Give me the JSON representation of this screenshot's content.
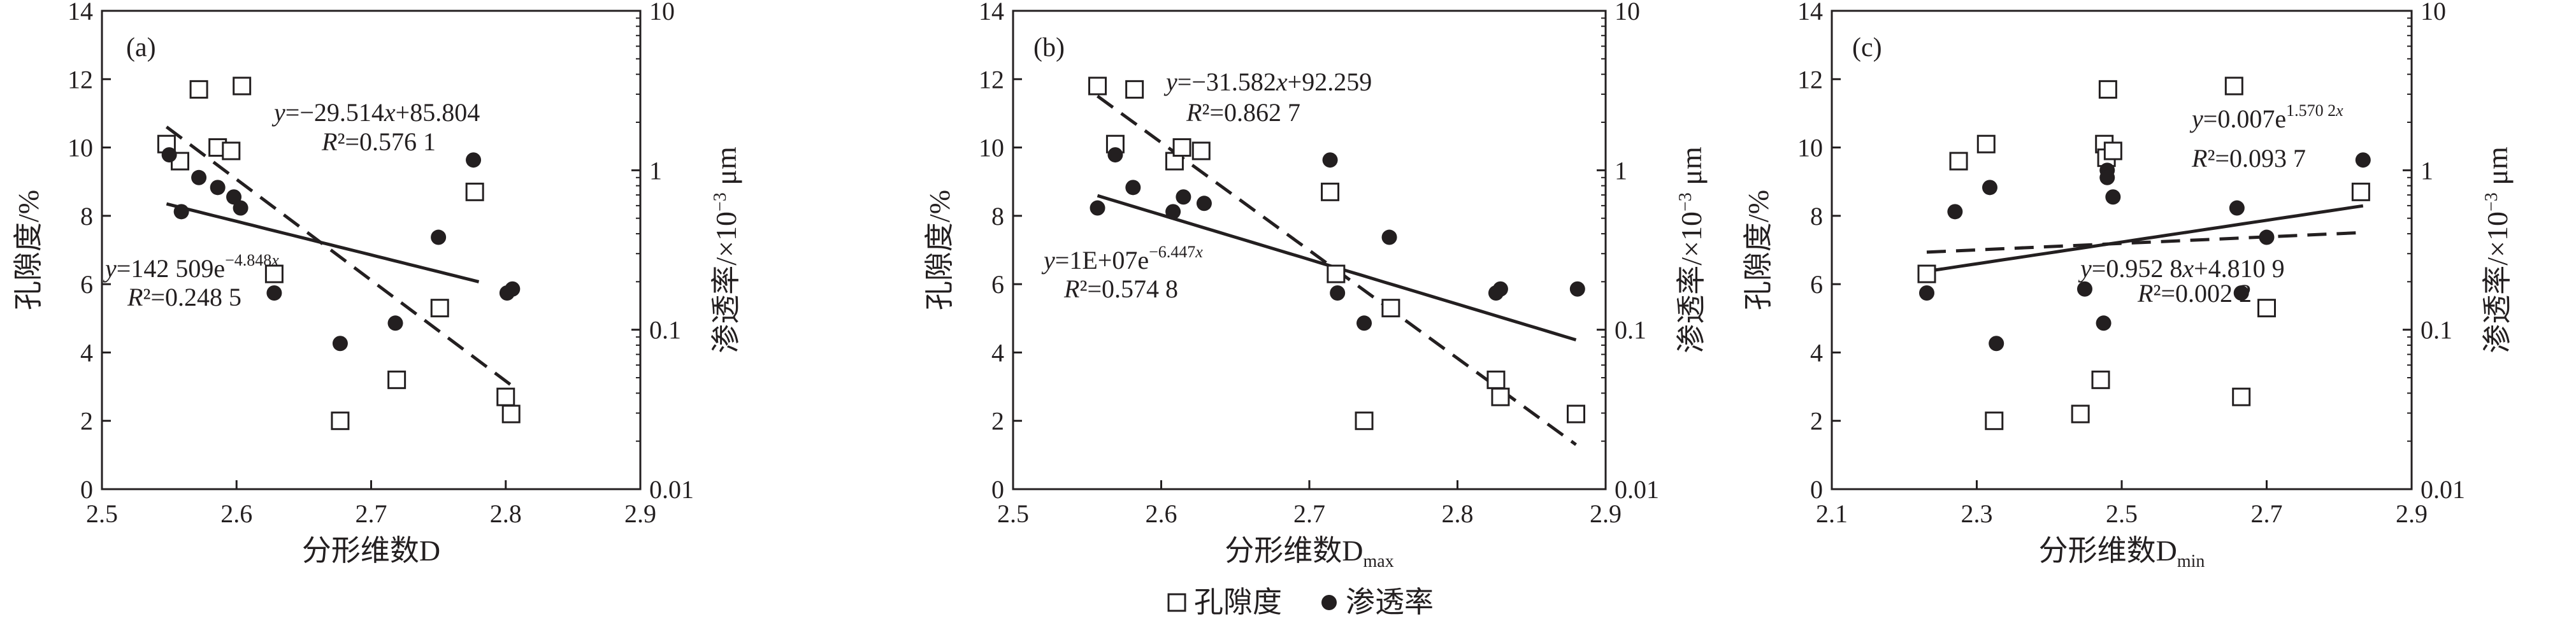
{
  "legend": {
    "porosity": "孔隙度",
    "permeability": "渗透率"
  },
  "colors": {
    "ink": "#231f20",
    "background": "#ffffff"
  },
  "chart_data": [
    {
      "type": "scatter",
      "panel_label": "(a)",
      "xlabel_main": "分形维数D",
      "xlabel_sub": "",
      "ylabel_left": "孔隙度/%",
      "ylabel_right_prefix": "渗透率/×10",
      "ylabel_right_sup": "−3",
      "ylabel_right_unit": " μm",
      "xlim": [
        2.5,
        2.9
      ],
      "xticks": [
        2.5,
        2.6,
        2.7,
        2.8,
        2.9
      ],
      "xtick_labels": [
        "2.5",
        "2.6",
        "2.7",
        "2.8",
        "2.9"
      ],
      "ylim_left": [
        0,
        14
      ],
      "yticks_left": [
        0,
        2,
        4,
        6,
        8,
        10,
        12,
        14
      ],
      "ytick_labels_left": [
        "0",
        "2",
        "4",
        "6",
        "8",
        "10",
        "12",
        "14"
      ],
      "ylim_right_log": [
        0.01,
        10
      ],
      "yticks_right": [
        0.01,
        0.1,
        1,
        10
      ],
      "ytick_labels_right": [
        "0.01",
        "0.1",
        "1",
        "10"
      ],
      "series": [
        {
          "name": "孔隙度",
          "marker": "open-square",
          "x": [
            2.548,
            2.558,
            2.572,
            2.586,
            2.596,
            2.604,
            2.628,
            2.677,
            2.719,
            2.751,
            2.777,
            2.8,
            2.804
          ],
          "y": [
            10.1,
            9.6,
            11.7,
            10.0,
            9.9,
            11.8,
            6.3,
            2.0,
            3.2,
            5.3,
            8.7,
            2.7,
            2.2
          ]
        },
        {
          "name": "渗透率",
          "marker": "filled-circle",
          "x": [
            2.55,
            2.559,
            2.572,
            2.586,
            2.598,
            2.603,
            2.628,
            2.677,
            2.718,
            2.75,
            2.776,
            2.801,
            2.805
          ],
          "y": [
            1.25,
            0.55,
            0.9,
            0.78,
            0.68,
            0.58,
            0.17,
            0.082,
            0.11,
            0.38,
            1.16,
            0.17,
            0.18
          ]
        }
      ],
      "fits": [
        {
          "series": "孔隙度",
          "kind": "linear",
          "slope": -29.514,
          "intercept": 85.804,
          "x_range": [
            2.548,
            2.804
          ],
          "style": "dashed"
        },
        {
          "series": "渗透率",
          "kind": "exponential",
          "coef": 142509,
          "exp": -4.848,
          "x_range": [
            2.548,
            2.78
          ],
          "style": "solid"
        }
      ],
      "annotations": [
        {
          "eq": "y=−29.514x+85.804",
          "r2": "R²=0.576 1"
        },
        {
          "eq_base": "y=142 509e",
          "eq_sup": "−4.848x",
          "r2": "R²=0.248 5"
        }
      ]
    },
    {
      "type": "scatter",
      "panel_label": "(b)",
      "xlabel_main": "分形维数D",
      "xlabel_sub": "max",
      "ylabel_left": "孔隙度/%",
      "ylabel_right_prefix": "渗透率/×10",
      "ylabel_right_sup": "−3",
      "ylabel_right_unit": " μm",
      "xlim": [
        2.5,
        2.9
      ],
      "xticks": [
        2.5,
        2.6,
        2.7,
        2.8,
        2.9
      ],
      "xtick_labels": [
        "2.5",
        "2.6",
        "2.7",
        "2.8",
        "2.9"
      ],
      "ylim_left": [
        0,
        14
      ],
      "yticks_left": [
        0,
        2,
        4,
        6,
        8,
        10,
        12,
        14
      ],
      "ytick_labels_left": [
        "0",
        "2",
        "4",
        "6",
        "8",
        "10",
        "12",
        "14"
      ],
      "ylim_right_log": [
        0.01,
        10
      ],
      "yticks_right": [
        0.01,
        0.1,
        1,
        10
      ],
      "ytick_labels_right": [
        "0.01",
        "0.1",
        "1",
        "10"
      ],
      "series": [
        {
          "name": "孔隙度",
          "marker": "open-square",
          "x": [
            2.557,
            2.569,
            2.582,
            2.609,
            2.614,
            2.627,
            2.714,
            2.718,
            2.737,
            2.755,
            2.826,
            2.829,
            2.88
          ],
          "y": [
            11.8,
            10.1,
            11.7,
            9.6,
            10.0,
            9.9,
            8.7,
            6.3,
            2.0,
            5.3,
            3.2,
            2.7,
            2.2
          ]
        },
        {
          "name": "渗透率",
          "marker": "filled-circle",
          "x": [
            2.557,
            2.569,
            2.581,
            2.608,
            2.615,
            2.629,
            2.714,
            2.719,
            2.737,
            2.754,
            2.826,
            2.829,
            2.881
          ],
          "y": [
            0.58,
            1.25,
            0.78,
            0.55,
            0.68,
            0.62,
            1.16,
            0.17,
            0.11,
            0.38,
            0.17,
            0.18,
            0.18
          ]
        }
      ],
      "fits": [
        {
          "series": "孔隙度",
          "kind": "linear",
          "slope": -31.582,
          "intercept": 92.259,
          "x_range": [
            2.557,
            2.88
          ],
          "style": "dashed"
        },
        {
          "series": "渗透率",
          "kind": "exponential",
          "coef": 10000000,
          "exp": -6.447,
          "x_range": [
            2.557,
            2.88
          ],
          "style": "solid"
        }
      ],
      "annotations": [
        {
          "eq": "y=−31.582x+92.259",
          "r2": "R²=0.862 7"
        },
        {
          "eq_base": "y=1E+07e",
          "eq_sup": "−6.447x",
          "r2": "R²=0.574 8"
        }
      ]
    },
    {
      "type": "scatter",
      "panel_label": "(c)",
      "xlabel_main": "分形维数D",
      "xlabel_sub": "min",
      "ylabel_left": "孔隙度/%",
      "ylabel_right_prefix": "渗透率/×10",
      "ylabel_right_sup": "−3",
      "ylabel_right_unit": " μm",
      "xlim": [
        2.1,
        2.9
      ],
      "xticks": [
        2.1,
        2.3,
        2.5,
        2.7,
        2.9
      ],
      "xtick_labels": [
        "2.1",
        "2.3",
        "2.5",
        "2.7",
        "2.9"
      ],
      "ylim_left": [
        0,
        14
      ],
      "yticks_left": [
        0,
        2,
        4,
        6,
        8,
        10,
        12,
        14
      ],
      "ytick_labels_left": [
        "0",
        "2",
        "4",
        "6",
        "8",
        "10",
        "12",
        "14"
      ],
      "ylim_right_log": [
        0.01,
        10
      ],
      "yticks_right": [
        0.01,
        0.1,
        1,
        10
      ],
      "ytick_labels_right": [
        "0.01",
        "0.1",
        "1",
        "10"
      ],
      "series": [
        {
          "name": "孔隙度",
          "marker": "open-square",
          "x": [
            2.231,
            2.275,
            2.313,
            2.324,
            2.443,
            2.471,
            2.476,
            2.479,
            2.481,
            2.488,
            2.655,
            2.665,
            2.7,
            2.83
          ],
          "y": [
            6.3,
            9.6,
            10.1,
            2.0,
            2.2,
            3.2,
            10.1,
            9.7,
            11.7,
            9.9,
            11.8,
            2.7,
            5.3,
            8.7
          ]
        },
        {
          "name": "渗透率",
          "marker": "filled-circle",
          "x": [
            2.231,
            2.27,
            2.318,
            2.327,
            2.449,
            2.475,
            2.48,
            2.48,
            2.488,
            2.659,
            2.665,
            2.7,
            2.833
          ],
          "y": [
            0.17,
            0.55,
            0.78,
            0.082,
            0.18,
            0.11,
            1.0,
            0.9,
            0.68,
            0.58,
            0.17,
            0.38,
            1.16
          ]
        }
      ],
      "fits": [
        {
          "series": "孔隙度",
          "kind": "linear",
          "slope": 0.9528,
          "intercept": 4.8109,
          "x_range": [
            2.231,
            2.833
          ],
          "style": "dashed"
        },
        {
          "series": "渗透率",
          "kind": "exponential",
          "coef": 0.007,
          "exp": 1.5702,
          "x_range": [
            2.231,
            2.833
          ],
          "style": "solid"
        }
      ],
      "annotations": [
        {
          "eq_base": "y=0.007e",
          "eq_sup": "1.570 2x",
          "r2": "R²=0.093 7"
        },
        {
          "eq": "y=0.952 8x+4.810 9",
          "r2": "R²=0.002 2"
        }
      ]
    }
  ]
}
